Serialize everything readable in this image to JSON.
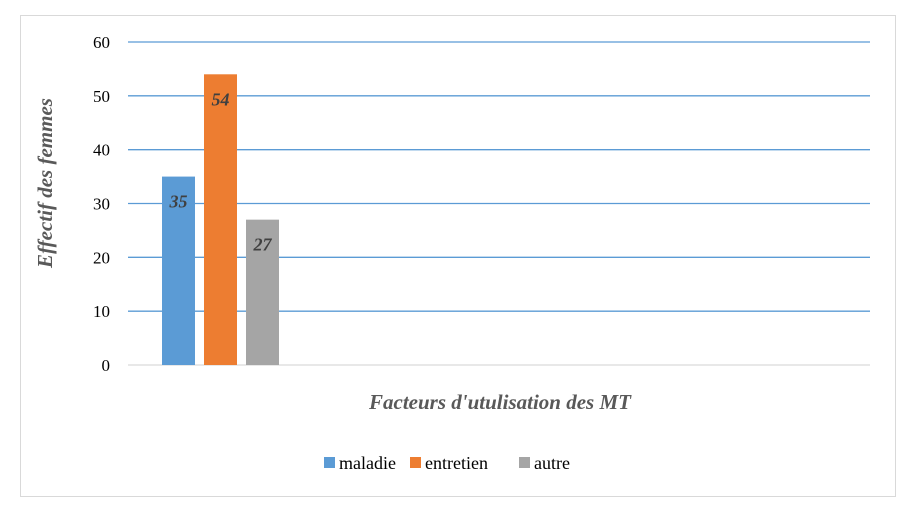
{
  "chart_data": {
    "type": "bar",
    "categories": [
      ""
    ],
    "series": [
      {
        "name": "maladie",
        "values": [
          35
        ],
        "color": "#5b9bd5"
      },
      {
        "name": "entretien",
        "values": [
          54
        ],
        "color": "#ed7d31"
      },
      {
        "name": "autre",
        "values": [
          27
        ],
        "color": "#a5a5a5"
      }
    ],
    "xlabel": "Facteurs d'utulisation des MT",
    "ylabel": "Effectif des femmes",
    "ylim": [
      0,
      60
    ],
    "yticks": [
      0,
      10,
      20,
      30,
      40,
      50,
      60
    ],
    "grid": true,
    "gridColor": "#5b9bd5",
    "legend": "bottom",
    "dataLabels": true
  }
}
